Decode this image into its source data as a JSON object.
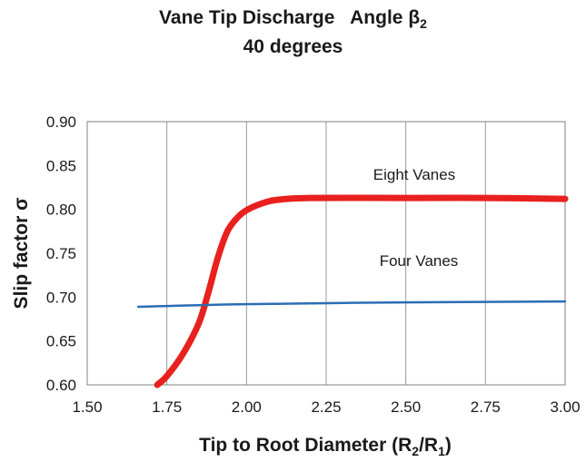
{
  "chart_data": {
    "type": "line",
    "title_line1_text": "Vane Tip Discharge   Angle ",
    "title_line1_symbol": "β",
    "title_line1_sub": "2",
    "title_line2": "40 degrees",
    "xlabel_text": "Tip to Root Diameter (R",
    "xlabel_sub1": "2",
    "xlabel_mid": "/R",
    "xlabel_sub2": "1",
    "xlabel_end": ")",
    "ylabel": "Slip factor σ",
    "xlim": [
      1.5,
      3.0
    ],
    "ylim": [
      0.6,
      0.9
    ],
    "xticks": [
      "1.50",
      "1.75",
      "2.00",
      "2.25",
      "2.50",
      "2.75",
      "3.00"
    ],
    "yticks": [
      "0.90",
      "0.85",
      "0.80",
      "0.75",
      "0.70",
      "0.65",
      "0.60"
    ],
    "grid": "vertical",
    "series": [
      {
        "name": "Eight Vanes",
        "color": "#e8201e",
        "points": [
          [
            1.72,
            0.6
          ],
          [
            1.75,
            0.61
          ],
          [
            1.8,
            0.635
          ],
          [
            1.85,
            0.67
          ],
          [
            1.88,
            0.705
          ],
          [
            1.91,
            0.745
          ],
          [
            1.94,
            0.775
          ],
          [
            1.97,
            0.79
          ],
          [
            2.0,
            0.799
          ],
          [
            2.05,
            0.807
          ],
          [
            2.1,
            0.811
          ],
          [
            2.2,
            0.813
          ],
          [
            2.5,
            0.813
          ],
          [
            2.75,
            0.813
          ],
          [
            3.0,
            0.812
          ]
        ]
      },
      {
        "name": "Four Vanes",
        "color": "#2a6db5",
        "points": [
          [
            1.66,
            0.689
          ],
          [
            2.0,
            0.692
          ],
          [
            2.5,
            0.694
          ],
          [
            3.0,
            0.695
          ]
        ]
      }
    ]
  }
}
